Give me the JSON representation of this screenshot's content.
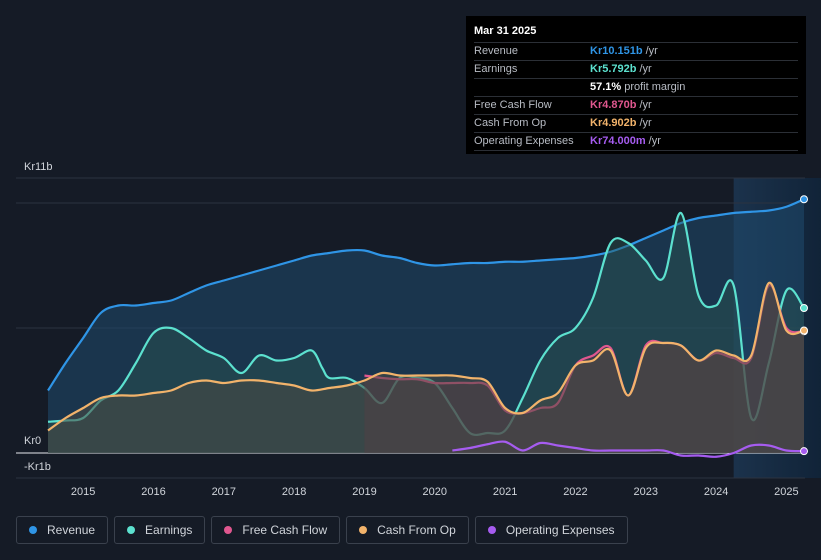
{
  "tooltip": {
    "date": "Mar 31 2025",
    "rows": [
      {
        "label": "Revenue",
        "value": "Kr10.151b",
        "unit": "/yr",
        "color": "#2f95e6"
      },
      {
        "label": "Earnings",
        "value": "Kr5.792b",
        "unit": "/yr",
        "color": "#5ce1cf"
      },
      {
        "label": "",
        "value": "57.1%",
        "unit": "profit margin",
        "color": "#ffffff"
      },
      {
        "label": "Free Cash Flow",
        "value": "Kr4.870b",
        "unit": "/yr",
        "color": "#e0578f"
      },
      {
        "label": "Cash From Op",
        "value": "Kr4.902b",
        "unit": "/yr",
        "color": "#f2b36b"
      },
      {
        "label": "Operating Expenses",
        "value": "Kr74.000m",
        "unit": "/yr",
        "color": "#a65cf0"
      }
    ]
  },
  "legend": [
    {
      "label": "Revenue",
      "color": "#2f95e6"
    },
    {
      "label": "Earnings",
      "color": "#5ce1cf"
    },
    {
      "label": "Free Cash Flow",
      "color": "#e0578f"
    },
    {
      "label": "Cash From Op",
      "color": "#f2b36b"
    },
    {
      "label": "Operating Expenses",
      "color": "#a65cf0"
    }
  ],
  "chart_data": {
    "type": "area",
    "y_unit": "Kr billions",
    "ylim": [
      -1,
      11
    ],
    "y_tick_labels": [
      {
        "value": 11,
        "label": "Kr11b"
      },
      {
        "value": 0,
        "label": "Kr0"
      },
      {
        "value": -1,
        "label": "-Kr1b"
      }
    ],
    "x_tick_labels": [
      "2015",
      "2016",
      "2017",
      "2018",
      "2019",
      "2020",
      "2021",
      "2022",
      "2023",
      "2024",
      "2025"
    ],
    "x_tick_years": [
      2015,
      2016,
      2017,
      2018,
      2019,
      2020,
      2021,
      2022,
      2023,
      2024,
      2025
    ],
    "xlim": [
      2014.5,
      2025.25
    ],
    "forecast_start": 2024.25,
    "series": [
      {
        "name": "Revenue",
        "color": "#2f95e6",
        "x": [
          2014.5,
          2014.75,
          2015.0,
          2015.25,
          2015.5,
          2015.75,
          2016.0,
          2016.25,
          2016.5,
          2016.75,
          2017.0,
          2017.25,
          2017.5,
          2017.75,
          2018.0,
          2018.25,
          2018.5,
          2018.75,
          2019.0,
          2019.25,
          2019.5,
          2019.75,
          2020.0,
          2020.25,
          2020.5,
          2020.75,
          2021.0,
          2021.25,
          2021.5,
          2021.75,
          2022.0,
          2022.25,
          2022.5,
          2022.75,
          2023.0,
          2023.25,
          2023.5,
          2023.75,
          2024.0,
          2024.25,
          2024.5,
          2024.75,
          2025.0,
          2025.25
        ],
        "values": [
          2.5,
          3.6,
          4.6,
          5.6,
          5.9,
          5.9,
          6.0,
          6.1,
          6.4,
          6.7,
          6.9,
          7.1,
          7.3,
          7.5,
          7.7,
          7.9,
          8.0,
          8.1,
          8.1,
          7.9,
          7.8,
          7.6,
          7.5,
          7.55,
          7.6,
          7.6,
          7.65,
          7.65,
          7.7,
          7.75,
          7.8,
          7.9,
          8.05,
          8.3,
          8.6,
          8.9,
          9.2,
          9.4,
          9.5,
          9.6,
          9.65,
          9.7,
          9.85,
          10.15
        ]
      },
      {
        "name": "Earnings",
        "color": "#5ce1cf",
        "x": [
          2014.5,
          2014.75,
          2015.0,
          2015.25,
          2015.5,
          2015.75,
          2016.0,
          2016.25,
          2016.5,
          2016.75,
          2017.0,
          2017.25,
          2017.5,
          2017.75,
          2018.0,
          2018.25,
          2018.4,
          2018.5,
          2018.75,
          2019.0,
          2019.25,
          2019.5,
          2019.75,
          2020.0,
          2020.25,
          2020.5,
          2020.75,
          2021.0,
          2021.25,
          2021.5,
          2021.75,
          2022.0,
          2022.25,
          2022.5,
          2022.75,
          2023.0,
          2023.25,
          2023.5,
          2023.75,
          2024.0,
          2024.25,
          2024.5,
          2024.75,
          2025.0,
          2025.25
        ],
        "values": [
          1.25,
          1.3,
          1.4,
          2.1,
          2.5,
          3.6,
          4.8,
          5.0,
          4.6,
          4.1,
          3.8,
          3.2,
          3.9,
          3.7,
          3.8,
          4.1,
          3.4,
          3.0,
          3.0,
          2.6,
          2.0,
          3.0,
          3.0,
          2.8,
          1.8,
          0.8,
          0.8,
          0.9,
          2.2,
          3.7,
          4.6,
          5.0,
          6.2,
          8.4,
          8.4,
          7.7,
          7.0,
          9.6,
          6.3,
          5.9,
          6.7,
          1.4,
          3.6,
          6.5,
          5.8
        ]
      },
      {
        "name": "Free Cash Flow",
        "color": "#e0578f",
        "x": [
          2019.0,
          2019.25,
          2019.5,
          2019.75,
          2020.0,
          2020.25,
          2020.5,
          2020.75,
          2021.0,
          2021.25,
          2021.5,
          2021.75,
          2022.0,
          2022.25,
          2022.5,
          2022.75,
          2023.0,
          2023.25,
          2023.5,
          2023.75,
          2024.0,
          2024.25,
          2024.5,
          2024.75,
          2025.0,
          2025.25
        ],
        "values": [
          3.1,
          3.0,
          2.95,
          2.95,
          2.8,
          2.8,
          2.8,
          2.7,
          1.7,
          1.6,
          1.8,
          2.0,
          3.5,
          3.9,
          4.2,
          2.3,
          4.3,
          4.4,
          4.3,
          3.7,
          4.0,
          3.8,
          3.8,
          6.7,
          5.0,
          4.87
        ]
      },
      {
        "name": "Cash From Op",
        "color": "#f2b36b",
        "x": [
          2014.5,
          2014.75,
          2015.0,
          2015.25,
          2015.5,
          2015.75,
          2016.0,
          2016.25,
          2016.5,
          2016.75,
          2017.0,
          2017.25,
          2017.5,
          2017.75,
          2018.0,
          2018.25,
          2018.5,
          2018.75,
          2019.0,
          2019.25,
          2019.5,
          2019.75,
          2020.0,
          2020.25,
          2020.5,
          2020.75,
          2021.0,
          2021.25,
          2021.5,
          2021.75,
          2022.0,
          2022.25,
          2022.5,
          2022.75,
          2023.0,
          2023.25,
          2023.5,
          2023.75,
          2024.0,
          2024.25,
          2024.5,
          2024.75,
          2025.0,
          2025.25
        ],
        "values": [
          0.9,
          1.4,
          1.8,
          2.2,
          2.3,
          2.3,
          2.4,
          2.5,
          2.8,
          2.9,
          2.8,
          2.9,
          2.9,
          2.8,
          2.7,
          2.5,
          2.6,
          2.7,
          2.9,
          3.2,
          3.1,
          3.1,
          3.1,
          3.1,
          3.0,
          2.85,
          1.8,
          1.6,
          2.1,
          2.4,
          3.5,
          3.7,
          4.1,
          2.3,
          4.2,
          4.4,
          4.3,
          3.7,
          4.1,
          3.9,
          3.9,
          6.8,
          4.9,
          4.9
        ]
      },
      {
        "name": "Operating Expenses",
        "color": "#a65cf0",
        "x": [
          2020.25,
          2020.5,
          2020.75,
          2021.0,
          2021.25,
          2021.5,
          2021.75,
          2022.0,
          2022.25,
          2022.5,
          2022.75,
          2023.0,
          2023.25,
          2023.5,
          2023.75,
          2024.0,
          2024.25,
          2024.5,
          2024.75,
          2025.0,
          2025.25
        ],
        "values": [
          0.1,
          0.2,
          0.35,
          0.45,
          0.1,
          0.4,
          0.3,
          0.2,
          0.1,
          0.1,
          0.1,
          0.1,
          0.1,
          -0.1,
          -0.1,
          -0.15,
          0.0,
          0.3,
          0.3,
          0.1,
          0.074
        ]
      }
    ]
  }
}
